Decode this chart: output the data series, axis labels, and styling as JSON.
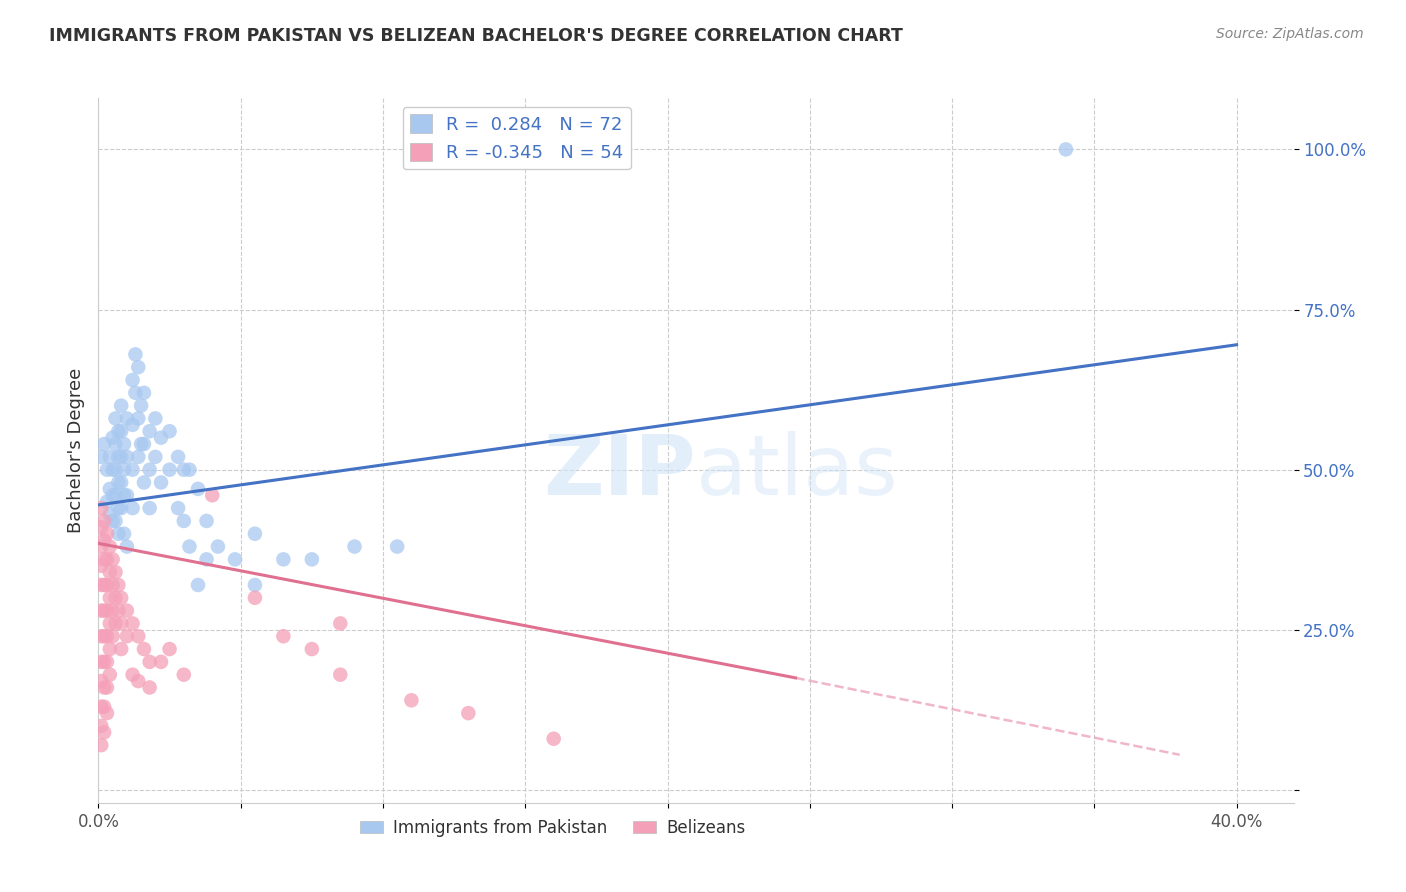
{
  "title": "IMMIGRANTS FROM PAKISTAN VS BELIZEAN BACHELOR'S DEGREE CORRELATION CHART",
  "source": "Source: ZipAtlas.com",
  "ylabel": "Bachelor's Degree",
  "xlim": [
    0.0,
    0.42
  ],
  "ylim": [
    -0.02,
    1.08
  ],
  "ytick_vals": [
    0.0,
    0.25,
    0.5,
    0.75,
    1.0
  ],
  "ytick_labels": [
    "",
    "25.0%",
    "50.0%",
    "75.0%",
    "100.0%"
  ],
  "xtick_vals": [
    0.0,
    0.05,
    0.1,
    0.15,
    0.2,
    0.25,
    0.3,
    0.35,
    0.4
  ],
  "xtick_labels": [
    "0.0%",
    "",
    "",
    "",
    "",
    "",
    "",
    "",
    "40.0%"
  ],
  "blue_R": 0.284,
  "blue_N": 72,
  "pink_R": -0.345,
  "pink_N": 54,
  "blue_color": "#A8C8F0",
  "pink_color": "#F4A0B8",
  "blue_line_color": "#4472C4",
  "pink_line_color": "#E07090",
  "watermark": "ZIPatlas",
  "blue_line": [
    [
      0.0,
      0.445
    ],
    [
      0.4,
      0.695
    ]
  ],
  "pink_line_solid": [
    [
      0.0,
      0.385
    ],
    [
      0.245,
      0.175
    ]
  ],
  "pink_line_dash": [
    [
      0.245,
      0.175
    ],
    [
      0.38,
      0.055
    ]
  ],
  "blue_scatter": [
    [
      0.001,
      0.52
    ],
    [
      0.002,
      0.54
    ],
    [
      0.003,
      0.5
    ],
    [
      0.003,
      0.45
    ],
    [
      0.004,
      0.52
    ],
    [
      0.004,
      0.47
    ],
    [
      0.004,
      0.43
    ],
    [
      0.005,
      0.55
    ],
    [
      0.005,
      0.5
    ],
    [
      0.005,
      0.46
    ],
    [
      0.005,
      0.42
    ],
    [
      0.006,
      0.58
    ],
    [
      0.006,
      0.54
    ],
    [
      0.006,
      0.5
    ],
    [
      0.006,
      0.46
    ],
    [
      0.006,
      0.42
    ],
    [
      0.007,
      0.56
    ],
    [
      0.007,
      0.52
    ],
    [
      0.007,
      0.48
    ],
    [
      0.007,
      0.44
    ],
    [
      0.007,
      0.4
    ],
    [
      0.008,
      0.6
    ],
    [
      0.008,
      0.56
    ],
    [
      0.008,
      0.52
    ],
    [
      0.008,
      0.48
    ],
    [
      0.008,
      0.44
    ],
    [
      0.009,
      0.54
    ],
    [
      0.009,
      0.5
    ],
    [
      0.009,
      0.46
    ],
    [
      0.009,
      0.4
    ],
    [
      0.01,
      0.58
    ],
    [
      0.01,
      0.52
    ],
    [
      0.01,
      0.46
    ],
    [
      0.01,
      0.38
    ],
    [
      0.012,
      0.64
    ],
    [
      0.012,
      0.57
    ],
    [
      0.012,
      0.5
    ],
    [
      0.012,
      0.44
    ],
    [
      0.013,
      0.68
    ],
    [
      0.013,
      0.62
    ],
    [
      0.014,
      0.66
    ],
    [
      0.014,
      0.58
    ],
    [
      0.014,
      0.52
    ],
    [
      0.015,
      0.6
    ],
    [
      0.015,
      0.54
    ],
    [
      0.016,
      0.62
    ],
    [
      0.016,
      0.54
    ],
    [
      0.016,
      0.48
    ],
    [
      0.018,
      0.56
    ],
    [
      0.018,
      0.5
    ],
    [
      0.018,
      0.44
    ],
    [
      0.02,
      0.58
    ],
    [
      0.02,
      0.52
    ],
    [
      0.022,
      0.55
    ],
    [
      0.022,
      0.48
    ],
    [
      0.025,
      0.56
    ],
    [
      0.025,
      0.5
    ],
    [
      0.028,
      0.52
    ],
    [
      0.028,
      0.44
    ],
    [
      0.03,
      0.5
    ],
    [
      0.03,
      0.42
    ],
    [
      0.032,
      0.5
    ],
    [
      0.032,
      0.38
    ],
    [
      0.035,
      0.47
    ],
    [
      0.035,
      0.32
    ],
    [
      0.038,
      0.42
    ],
    [
      0.038,
      0.36
    ],
    [
      0.042,
      0.38
    ],
    [
      0.048,
      0.36
    ],
    [
      0.055,
      0.4
    ],
    [
      0.055,
      0.32
    ],
    [
      0.065,
      0.36
    ],
    [
      0.075,
      0.36
    ],
    [
      0.09,
      0.38
    ],
    [
      0.105,
      0.38
    ],
    [
      0.34,
      1.0
    ]
  ],
  "pink_scatter": [
    [
      0.001,
      0.44
    ],
    [
      0.001,
      0.41
    ],
    [
      0.001,
      0.38
    ],
    [
      0.001,
      0.35
    ],
    [
      0.001,
      0.32
    ],
    [
      0.001,
      0.28
    ],
    [
      0.001,
      0.24
    ],
    [
      0.001,
      0.2
    ],
    [
      0.001,
      0.17
    ],
    [
      0.001,
      0.13
    ],
    [
      0.001,
      0.1
    ],
    [
      0.001,
      0.07
    ],
    [
      0.002,
      0.42
    ],
    [
      0.002,
      0.39
    ],
    [
      0.002,
      0.36
    ],
    [
      0.002,
      0.32
    ],
    [
      0.002,
      0.28
    ],
    [
      0.002,
      0.24
    ],
    [
      0.002,
      0.2
    ],
    [
      0.002,
      0.16
    ],
    [
      0.002,
      0.13
    ],
    [
      0.002,
      0.09
    ],
    [
      0.003,
      0.4
    ],
    [
      0.003,
      0.36
    ],
    [
      0.003,
      0.32
    ],
    [
      0.003,
      0.28
    ],
    [
      0.003,
      0.24
    ],
    [
      0.003,
      0.2
    ],
    [
      0.003,
      0.16
    ],
    [
      0.003,
      0.12
    ],
    [
      0.004,
      0.38
    ],
    [
      0.004,
      0.34
    ],
    [
      0.004,
      0.3
    ],
    [
      0.004,
      0.26
    ],
    [
      0.004,
      0.22
    ],
    [
      0.004,
      0.18
    ],
    [
      0.005,
      0.36
    ],
    [
      0.005,
      0.32
    ],
    [
      0.005,
      0.28
    ],
    [
      0.005,
      0.24
    ],
    [
      0.006,
      0.34
    ],
    [
      0.006,
      0.3
    ],
    [
      0.006,
      0.26
    ],
    [
      0.007,
      0.32
    ],
    [
      0.007,
      0.28
    ],
    [
      0.008,
      0.3
    ],
    [
      0.008,
      0.26
    ],
    [
      0.008,
      0.22
    ],
    [
      0.01,
      0.28
    ],
    [
      0.01,
      0.24
    ],
    [
      0.012,
      0.26
    ],
    [
      0.012,
      0.18
    ],
    [
      0.014,
      0.24
    ],
    [
      0.014,
      0.17
    ],
    [
      0.016,
      0.22
    ],
    [
      0.018,
      0.2
    ],
    [
      0.018,
      0.16
    ],
    [
      0.022,
      0.2
    ],
    [
      0.025,
      0.22
    ],
    [
      0.03,
      0.18
    ],
    [
      0.04,
      0.46
    ],
    [
      0.055,
      0.3
    ],
    [
      0.065,
      0.24
    ],
    [
      0.075,
      0.22
    ],
    [
      0.085,
      0.26
    ],
    [
      0.085,
      0.18
    ],
    [
      0.11,
      0.14
    ],
    [
      0.13,
      0.12
    ],
    [
      0.16,
      0.08
    ]
  ]
}
